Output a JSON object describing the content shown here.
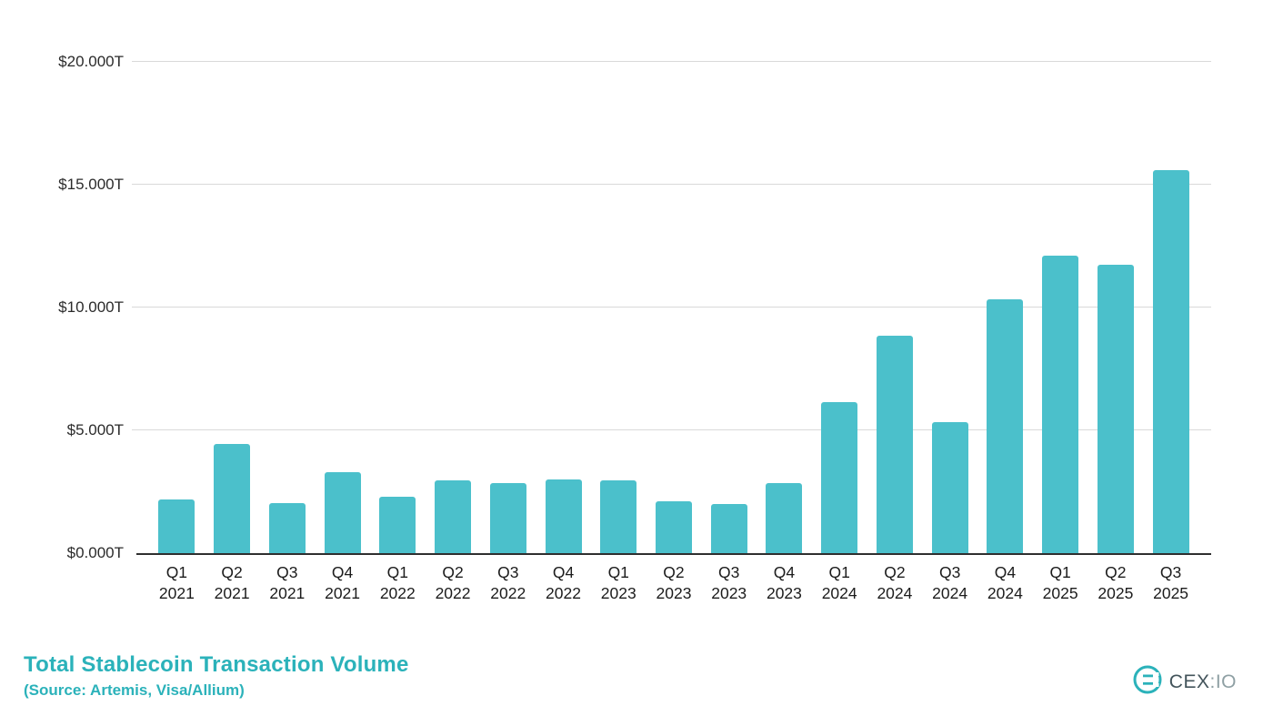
{
  "title": "Total Stablecoin Transaction Volume",
  "source": "(Source: Artemis, Visa/Allium)",
  "logo": {
    "icon": "cexio-mark",
    "text_main": "CEX",
    "text_sub": ":IO"
  },
  "colors": {
    "bar": "#4bc0cb",
    "accent": "#2bb2ba",
    "grid": "#d9d9d9",
    "axis": "#2f2f2f"
  },
  "chart_data": {
    "type": "bar",
    "title": "Total Stablecoin Transaction Volume",
    "subtitle": "(Source: Artemis, Visa/Allium)",
    "categories": [
      "Q1 2021",
      "Q2 2021",
      "Q3 2021",
      "Q4 2021",
      "Q1 2022",
      "Q2 2022",
      "Q3 2022",
      "Q4 2022",
      "Q1 2023",
      "Q2 2023",
      "Q3 2023",
      "Q4 2023",
      "Q1 2024",
      "Q2 2024",
      "Q3 2024",
      "Q4 2024",
      "Q1 2025",
      "Q2 2025",
      "Q3 2025"
    ],
    "values": [
      2.2,
      4.45,
      2.05,
      3.3,
      2.3,
      2.95,
      2.85,
      3.0,
      2.95,
      2.1,
      2.0,
      2.85,
      6.15,
      8.85,
      5.35,
      10.35,
      12.1,
      11.75,
      15.6
    ],
    "values_unit": "T USD",
    "yticks": [
      "$0.000T",
      "$5.000T",
      "$10.000T",
      "$15.000T",
      "$20.000T"
    ],
    "ylim": [
      0,
      20
    ],
    "xlabel": "",
    "ylabel": "",
    "grid": "horizontal",
    "legend": "none"
  }
}
